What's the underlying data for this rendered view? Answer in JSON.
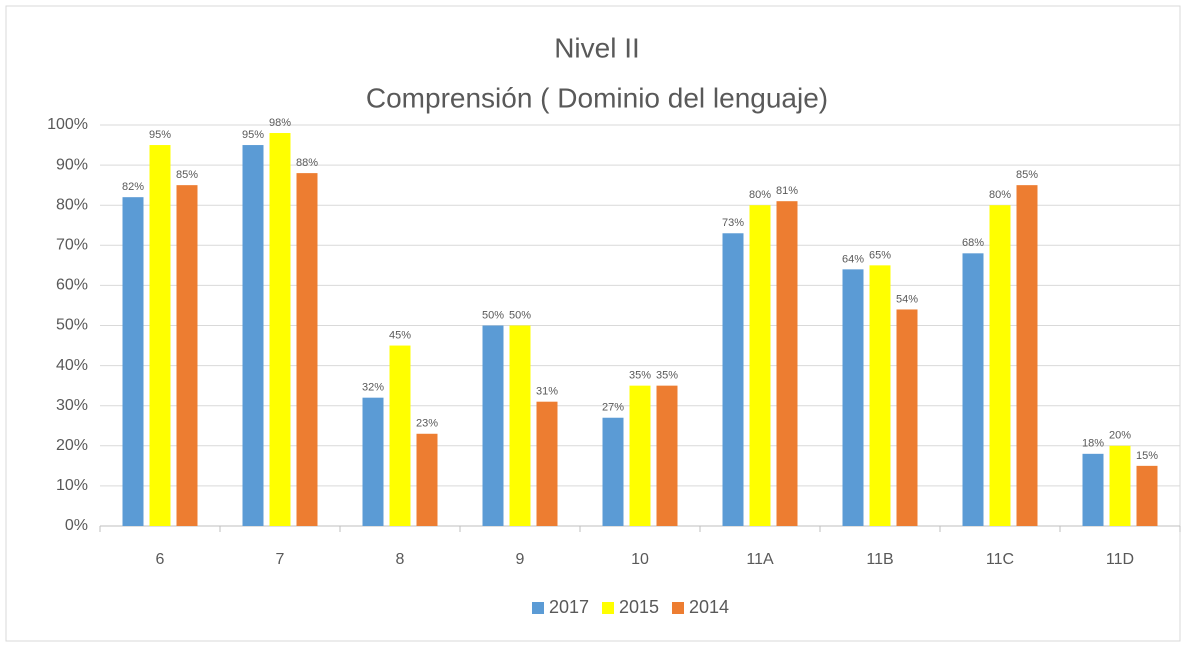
{
  "chart_data": {
    "type": "bar",
    "title": "Nivel II",
    "subtitle": "Comprensión ( Dominio del lenguaje)",
    "categories": [
      "6",
      "7",
      "8",
      "9",
      "10",
      "11A",
      "11B",
      "11C",
      "11D"
    ],
    "series": [
      {
        "name": "2017",
        "color": "#5b9bd5",
        "values": [
          82,
          95,
          32,
          50,
          27,
          73,
          64,
          68,
          18
        ],
        "value_labels": [
          "82%",
          "95%",
          "32%",
          "50%",
          "27%",
          "73%",
          "64%",
          "68%",
          "18%"
        ]
      },
      {
        "name": "2015",
        "color": "#ffff00",
        "values": [
          95,
          98,
          45,
          50,
          35,
          80,
          65,
          80,
          20
        ],
        "value_labels": [
          "95%",
          "98%",
          "45%",
          "50%",
          "35%",
          "80%",
          "65%",
          "80%",
          "20%"
        ]
      },
      {
        "name": "2014",
        "color": "#ed7d31",
        "values": [
          85,
          88,
          23,
          31,
          35,
          81,
          54,
          85,
          15
        ],
        "value_labels": [
          "85%",
          "88%",
          "23%",
          "31%",
          "35%",
          "81%",
          "54%",
          "85%",
          "15%"
        ]
      }
    ],
    "ylim": [
      0,
      100
    ],
    "yticks": [
      {
        "value": 0,
        "label": "0%"
      },
      {
        "value": 10,
        "label": "10%"
      },
      {
        "value": 20,
        "label": "20%"
      },
      {
        "value": 30,
        "label": "30%"
      },
      {
        "value": 40,
        "label": "40%"
      },
      {
        "value": 50,
        "label": "50%"
      },
      {
        "value": 60,
        "label": "60%"
      },
      {
        "value": 70,
        "label": "70%"
      },
      {
        "value": 80,
        "label": "80%"
      },
      {
        "value": 90,
        "label": "90%"
      },
      {
        "value": 100,
        "label": "100%"
      }
    ],
    "grid": true,
    "legend": "bottom"
  }
}
